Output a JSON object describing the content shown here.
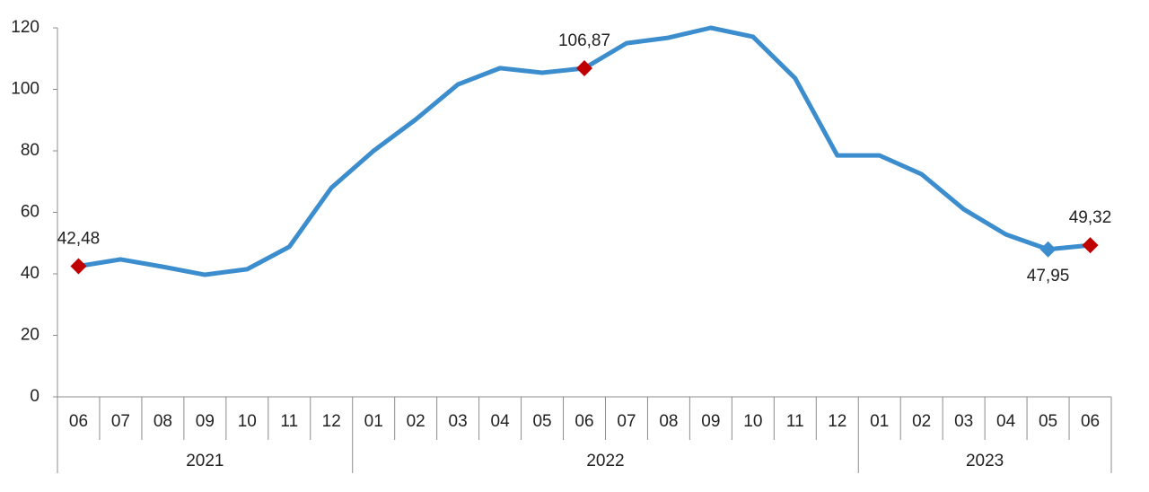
{
  "chart_data": {
    "type": "line",
    "categories": [
      "06",
      "07",
      "08",
      "09",
      "10",
      "11",
      "12",
      "01",
      "02",
      "03",
      "04",
      "05",
      "06",
      "07",
      "08",
      "09",
      "10",
      "11",
      "12",
      "01",
      "02",
      "03",
      "04",
      "05",
      "06"
    ],
    "years": [
      "2021",
      null,
      null,
      null,
      null,
      null,
      null,
      "2022",
      null,
      null,
      null,
      null,
      null,
      null,
      null,
      null,
      null,
      null,
      null,
      "2023",
      null,
      null,
      null,
      null,
      null
    ],
    "series": [
      {
        "color": "#3c8dcd",
        "values": [
          42.48,
          44.7,
          42.3,
          39.7,
          41.5,
          48.8,
          68.0,
          80.0,
          90.2,
          101.6,
          106.9,
          105.4,
          106.87,
          115.0,
          116.8,
          120.0,
          117.1,
          103.6,
          78.5,
          78.5,
          72.4,
          61.0,
          52.8,
          47.95,
          49.32
        ],
        "value_labels": [
          "42,48",
          null,
          null,
          null,
          null,
          null,
          null,
          null,
          null,
          null,
          null,
          null,
          "106,87",
          null,
          null,
          null,
          null,
          null,
          null,
          null,
          null,
          null,
          null,
          "47,95",
          "49,32"
        ],
        "marker_colors": [
          "#c00000",
          null,
          null,
          null,
          null,
          null,
          null,
          null,
          null,
          null,
          null,
          null,
          "#c00000",
          null,
          null,
          null,
          null,
          null,
          null,
          null,
          null,
          null,
          null,
          "#3c8dcd",
          "#c00000"
        ]
      }
    ],
    "ylim": [
      0,
      120
    ],
    "yticks": [
      0,
      20,
      40,
      60,
      80,
      100,
      120
    ],
    "grid": false
  }
}
